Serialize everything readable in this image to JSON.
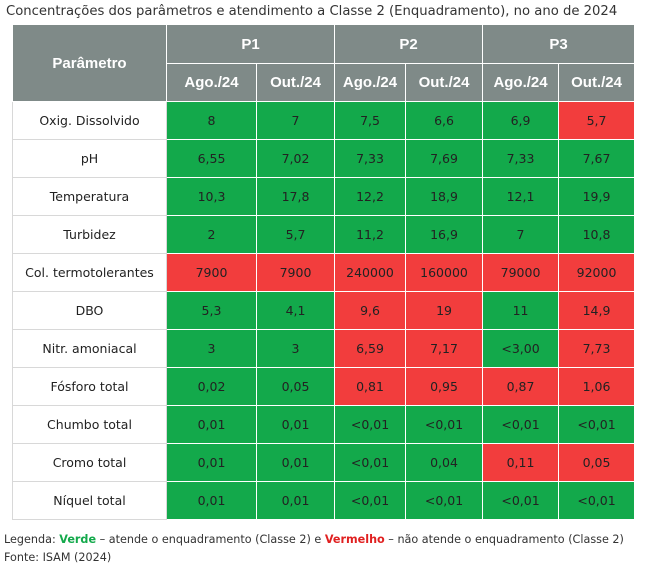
{
  "title": "Concentrações dos parâmetros e atendimento a Classe 2 (Enquadramento), no ano de 2024",
  "table": {
    "param_header": "Parâmetro",
    "groups": [
      "P1",
      "P2",
      "P3"
    ],
    "subheaders": [
      "Ago./24",
      "Out./24",
      "Ago./24",
      "Out./24",
      "Ago./24",
      "Out./24"
    ],
    "colors": {
      "green": "#13a94b",
      "red": "#f23d3d",
      "header": "#7f8a88"
    },
    "rows": [
      {
        "name": "Oxig. Dissolvido",
        "values": [
          "8",
          "7",
          "7,5",
          "6,6",
          "6,9",
          "5,7"
        ],
        "status": [
          "green",
          "green",
          "green",
          "green",
          "green",
          "red"
        ]
      },
      {
        "name": "pH",
        "values": [
          "6,55",
          "7,02",
          "7,33",
          "7,69",
          "7,33",
          "7,67"
        ],
        "status": [
          "green",
          "green",
          "green",
          "green",
          "green",
          "green"
        ]
      },
      {
        "name": "Temperatura",
        "values": [
          "10,3",
          "17,8",
          "12,2",
          "18,9",
          "12,1",
          "19,9"
        ],
        "status": [
          "green",
          "green",
          "green",
          "green",
          "green",
          "green"
        ]
      },
      {
        "name": "Turbidez",
        "values": [
          "2",
          "5,7",
          "11,2",
          "16,9",
          "7",
          "10,8"
        ],
        "status": [
          "green",
          "green",
          "green",
          "green",
          "green",
          "green"
        ]
      },
      {
        "name": "Col. termotolerantes",
        "values": [
          "7900",
          "7900",
          "240000",
          "160000",
          "79000",
          "92000"
        ],
        "status": [
          "red",
          "red",
          "red",
          "red",
          "red",
          "red"
        ]
      },
      {
        "name": "DBO",
        "values": [
          "5,3",
          "4,1",
          "9,6",
          "19",
          "11",
          "14,9"
        ],
        "status": [
          "green",
          "green",
          "red",
          "red",
          "green",
          "red"
        ]
      },
      {
        "name": "Nitr. amoniacal",
        "values": [
          "3",
          "3",
          "6,59",
          "7,17",
          "<3,00",
          "7,73"
        ],
        "status": [
          "green",
          "green",
          "red",
          "red",
          "green",
          "red"
        ]
      },
      {
        "name": "Fósforo total",
        "values": [
          "0,02",
          "0,05",
          "0,81",
          "0,95",
          "0,87",
          "1,06"
        ],
        "status": [
          "green",
          "green",
          "red",
          "red",
          "red",
          "red"
        ]
      },
      {
        "name": "Chumbo total",
        "values": [
          "0,01",
          "0,01",
          "<0,01",
          "<0,01",
          "<0,01",
          "<0,01"
        ],
        "status": [
          "green",
          "green",
          "green",
          "green",
          "green",
          "green"
        ]
      },
      {
        "name": "Cromo total",
        "values": [
          "0,01",
          "0,01",
          "<0,01",
          "0,04",
          "0,11",
          "0,05"
        ],
        "status": [
          "green",
          "green",
          "green",
          "green",
          "red",
          "red"
        ]
      },
      {
        "name": "Níquel total",
        "values": [
          "0,01",
          "0,01",
          "<0,01",
          "<0,01",
          "<0,01",
          "<0,01"
        ],
        "status": [
          "green",
          "green",
          "green",
          "green",
          "green",
          "green"
        ]
      }
    ]
  },
  "legend": {
    "prefix": "Legenda: ",
    "green_word": "Verde",
    "green_text": " – atende o enquadramento (Classe 2) e ",
    "red_word": "Vermelho",
    "red_text": " – não atende o enquadramento (Classe 2)"
  },
  "source": "Fonte: ISAM (2024)"
}
